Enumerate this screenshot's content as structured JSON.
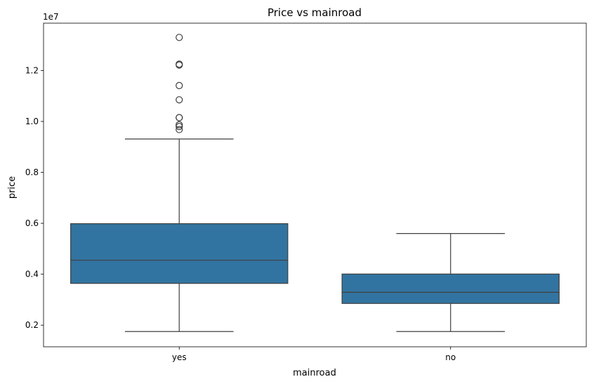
{
  "chart_data": {
    "type": "box",
    "title": "Price vs mainroad",
    "xlabel": "mainroad",
    "ylabel": "price",
    "y_multiplier_label": "1e7",
    "ylim": [
      1150000,
      13860000
    ],
    "yticks": [
      {
        "value": 2000000,
        "label": "0.2"
      },
      {
        "value": 4000000,
        "label": "0.4"
      },
      {
        "value": 6000000,
        "label": "0.6"
      },
      {
        "value": 8000000,
        "label": "0.8"
      },
      {
        "value": 10000000,
        "label": "1.0"
      },
      {
        "value": 12000000,
        "label": "1.2"
      }
    ],
    "categories": [
      "yes",
      "no"
    ],
    "boxes": [
      {
        "category": "yes",
        "whisker_low": 1750000,
        "q1": 3640000,
        "median": 4550000,
        "q3": 5985000,
        "whisker_high": 9310000,
        "outliers": [
          9681000,
          9800000,
          9870000,
          10150000,
          10150000,
          10850000,
          11410000,
          12215000,
          12250000,
          13300000
        ]
      },
      {
        "category": "no",
        "whisker_low": 1750000,
        "q1": 2852500,
        "median": 3290000,
        "q3": 4007500,
        "whisker_high": 5600000,
        "outliers": []
      }
    ],
    "colors": {
      "box_fill": "#3274a1",
      "line": "#3f3f3f",
      "axes": "#000000"
    },
    "grid": false
  }
}
